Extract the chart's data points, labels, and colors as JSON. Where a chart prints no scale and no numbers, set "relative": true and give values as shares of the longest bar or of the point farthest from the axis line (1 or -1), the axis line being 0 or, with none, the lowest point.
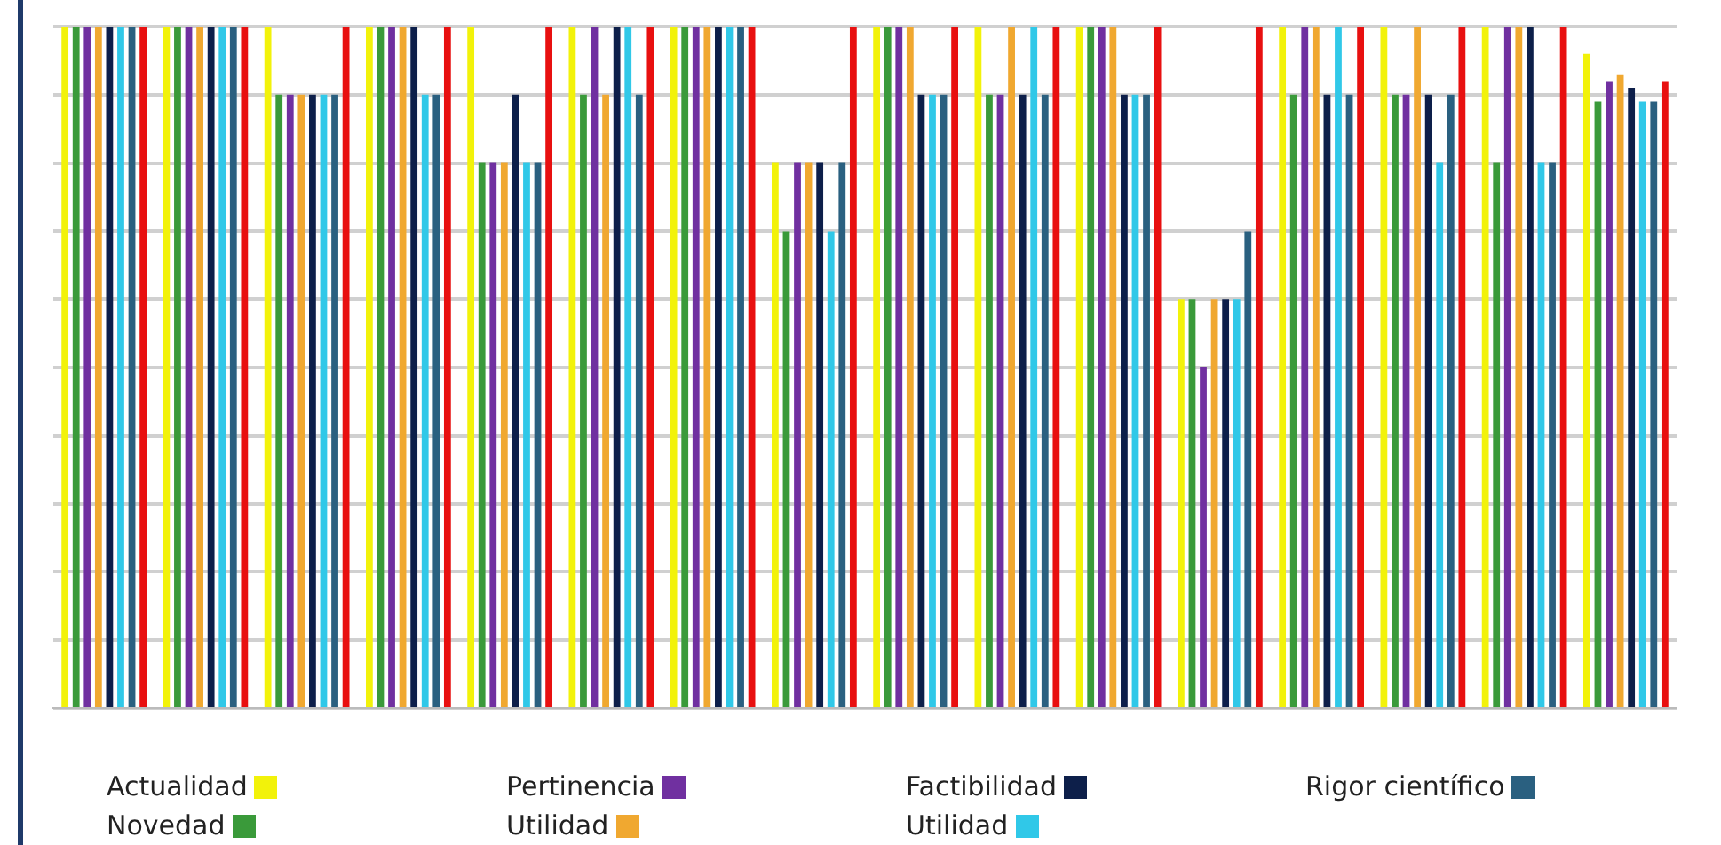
{
  "chart_data": {
    "type": "bar",
    "relative": true,
    "grid": "y",
    "legend": "bottom",
    "categories": [
      null,
      null,
      null,
      null,
      null,
      null,
      null,
      null,
      null,
      null,
      null,
      null,
      null,
      null,
      null,
      null
    ],
    "series": [
      {
        "name": "Actualidad",
        "color": "#f2f20a",
        "values": [
          1,
          1,
          1,
          1,
          1,
          1,
          1,
          0.8,
          1,
          1,
          1,
          0.6,
          1,
          1,
          1,
          0.96
        ]
      },
      {
        "name": "Novedad",
        "color": "#3a9a3a",
        "values": [
          1,
          1,
          0.9,
          1,
          0.8,
          0.9,
          1,
          0.7,
          1,
          0.9,
          1,
          0.6,
          0.9,
          0.9,
          0.8,
          0.89
        ]
      },
      {
        "name": "Pertinencia",
        "color": "#7030a0",
        "values": [
          1,
          1,
          0.9,
          1,
          0.8,
          1,
          1,
          0.8,
          1,
          0.9,
          1,
          0.5,
          1,
          0.9,
          1,
          0.92
        ]
      },
      {
        "name": "Utilidad",
        "color": "#f0a830",
        "values": [
          1,
          1,
          0.9,
          1,
          0.8,
          0.9,
          1,
          0.8,
          1,
          1,
          1,
          0.6,
          1,
          1,
          1,
          0.93
        ]
      },
      {
        "name": "Factibilidad",
        "color": "#0d1f4a",
        "values": [
          1,
          1,
          0.9,
          1,
          0.9,
          1,
          1,
          0.8,
          0.9,
          0.9,
          0.9,
          0.6,
          0.9,
          0.9,
          1,
          0.91
        ]
      },
      {
        "name": "Utilidad",
        "color": "#30c8e8",
        "values": [
          1,
          1,
          0.9,
          0.9,
          0.8,
          1,
          1,
          0.7,
          0.9,
          1,
          0.9,
          0.6,
          1,
          0.8,
          0.8,
          0.89
        ]
      },
      {
        "name": "Rigor científico",
        "color": "#2a6080",
        "values": [
          1,
          1,
          0.9,
          0.9,
          0.8,
          0.9,
          1,
          0.8,
          0.9,
          0.9,
          0.9,
          0.7,
          0.9,
          0.9,
          0.8,
          0.89
        ]
      },
      {
        "color": "#e81010",
        "values": [
          1,
          1,
          1,
          1,
          1,
          1,
          1,
          1,
          1,
          1,
          1,
          1,
          1,
          1,
          1,
          0.92
        ]
      }
    ]
  }
}
